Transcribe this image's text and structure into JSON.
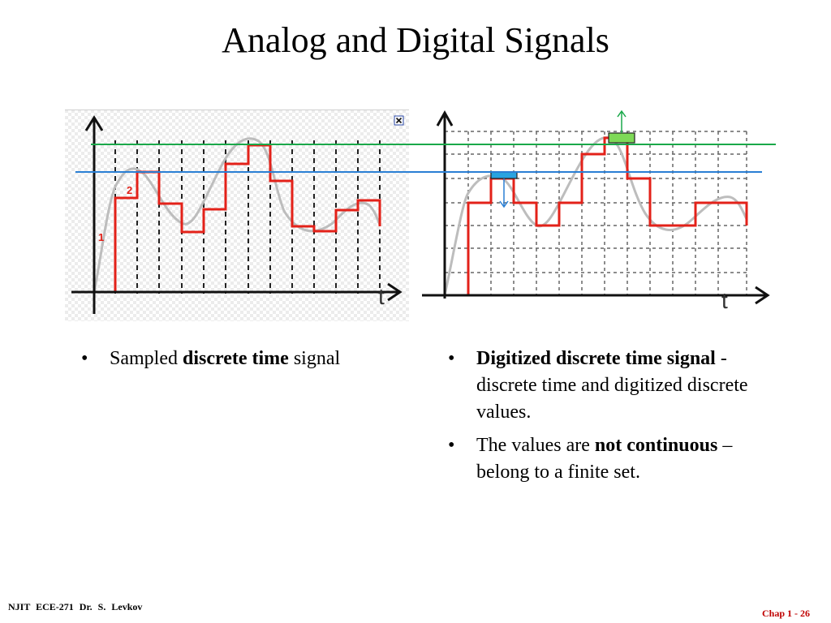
{
  "slide": {
    "title": "Analog and Digital Signals"
  },
  "figures": {
    "left": {
      "axis_label_t": "t",
      "level_labels": [
        "1",
        "2"
      ],
      "close_icon": "close-icon",
      "colors": {
        "signal": "#bdbdbd",
        "samples": "#e32119",
        "axis": "#111111",
        "grid": "#222222"
      }
    },
    "right": {
      "axis_label_t": "t",
      "colors": {
        "signal": "#bdbdbd",
        "samples": "#e32119",
        "axis": "#111111",
        "upper_marker": "#7ed957",
        "lower_marker": "#29a3e0"
      }
    },
    "reference_lines": {
      "upper_color": "#1aa84a",
      "lower_color": "#2a7fd4"
    }
  },
  "bullets_left": [
    {
      "pre": "Sampled ",
      "bold": "discrete time",
      "post": " signal"
    }
  ],
  "bullets_right": [
    {
      "pre": "",
      "bold": "Digitized discrete time signal",
      "post": " - discrete time and digitized discrete values."
    },
    {
      "pre": "The values are ",
      "bold": "not continuous",
      "post": " – belong to a finite set."
    }
  ],
  "footer": {
    "left": "NJIT ECE-271 Dr. S. Levkov",
    "right": "Chap 1 - 26"
  }
}
